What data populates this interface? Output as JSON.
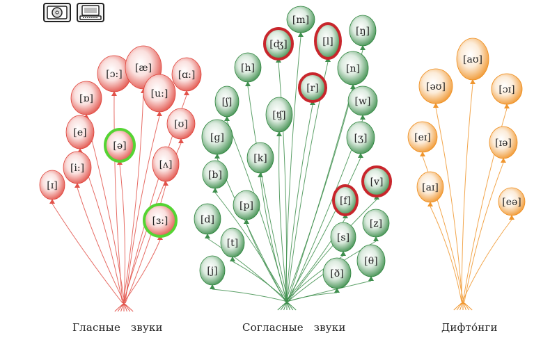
{
  "toolbar": {
    "buttons": [
      {
        "name": "cd-audio-button",
        "icon": "cd-icon"
      },
      {
        "name": "computer-button",
        "icon": "computer-icon"
      }
    ]
  },
  "colors": {
    "vowel": "#e2524a",
    "consonant": "#3f8f4e",
    "diphthong": "#f0962e",
    "highlight_red": "#c8262c",
    "highlight_green": "#55d433"
  },
  "groups": [
    {
      "id": "vowels",
      "caption": "Гласные   звуки",
      "color_key": "vowel",
      "balloons": [
        {
          "label": "[ɔ:]"
        },
        {
          "label": "[æ]"
        },
        {
          "label": "[ɑ:]"
        },
        {
          "label": "[ɒ]"
        },
        {
          "label": "[u:]"
        },
        {
          "label": "[e]"
        },
        {
          "label": "[ʊ]"
        },
        {
          "label": "[ə]",
          "highlight": "green"
        },
        {
          "label": "[i:]"
        },
        {
          "label": "[ʌ]"
        },
        {
          "label": "[ɪ]"
        },
        {
          "label": "[ɜ:]",
          "highlight": "green"
        }
      ]
    },
    {
      "id": "consonants",
      "caption": "Согласные   звуки",
      "color_key": "consonant",
      "balloons": [
        {
          "label": "[m]"
        },
        {
          "label": "[ʤ]",
          "highlight": "red"
        },
        {
          "label": "[l]",
          "highlight": "red"
        },
        {
          "label": "[ŋ]"
        },
        {
          "label": "[h]"
        },
        {
          "label": "[n]"
        },
        {
          "label": "[r]",
          "highlight": "red"
        },
        {
          "label": "[ʃ]"
        },
        {
          "label": "[ʧ]"
        },
        {
          "label": "[w]"
        },
        {
          "label": "[g]"
        },
        {
          "label": "[ʒ]"
        },
        {
          "label": "[k]"
        },
        {
          "label": "[b]"
        },
        {
          "label": "[v]",
          "highlight": "red"
        },
        {
          "label": "[f]",
          "highlight": "red"
        },
        {
          "label": "[p]"
        },
        {
          "label": "[d]"
        },
        {
          "label": "[z]"
        },
        {
          "label": "[t]"
        },
        {
          "label": "[s]"
        },
        {
          "label": "[θ]"
        },
        {
          "label": "[ð]"
        },
        {
          "label": "[j]"
        }
      ]
    },
    {
      "id": "diphthongs",
      "caption": "Дифто́нги",
      "color_key": "diphthong",
      "balloons": [
        {
          "label": "[aʊ]"
        },
        {
          "label": "[əʊ]"
        },
        {
          "label": "[ɔɪ]"
        },
        {
          "label": "[eɪ]"
        },
        {
          "label": "[ɪə]"
        },
        {
          "label": "[aɪ]"
        },
        {
          "label": "[eə]"
        }
      ]
    }
  ]
}
